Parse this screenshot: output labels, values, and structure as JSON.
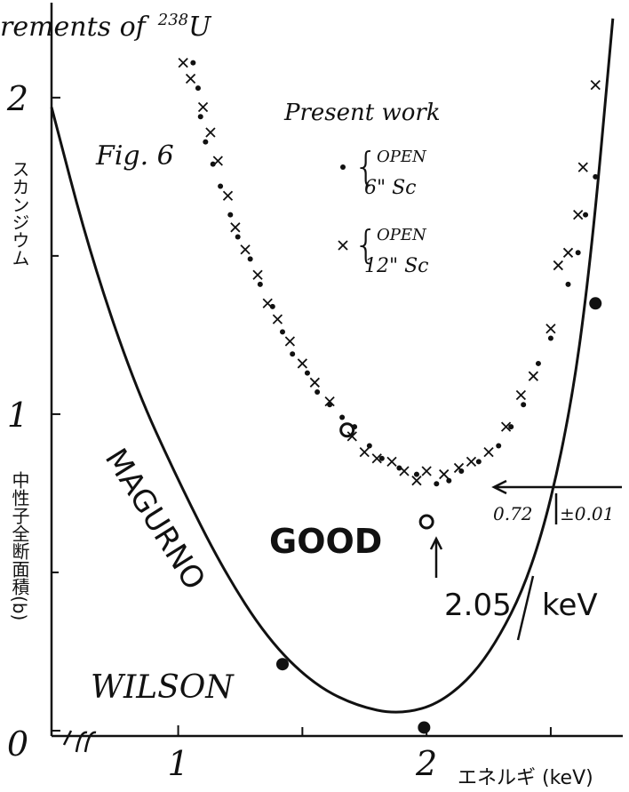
{
  "chart_data": {
    "type": "scatter",
    "title_parts": [
      "rements of",
      "238",
      "U"
    ],
    "y_label_top": "スカンジウム",
    "y_label_bottom": "中性子全断面積(b)",
    "x_label": "エネルギ (keV)",
    "figure_label": "Fig. 6",
    "legend_title": "Present work",
    "annotations": {
      "magurno": "MAGURNO",
      "wilson": "WILSON",
      "good": "GOOD",
      "minimum": "0.72",
      "minimum_error": "±0.01",
      "energy": "2.05",
      "energy_unit": "keV"
    },
    "xlim": [
      0.49,
      2.79
    ],
    "ylim": [
      0,
      2.3
    ],
    "xticks": [
      1,
      2
    ],
    "yticks": [
      0,
      1,
      2
    ],
    "xminorticks": [
      1.5,
      2.5
    ],
    "yminorticks": [
      0.5,
      1.5
    ],
    "series": [
      {
        "name_lines": [
          "OPEN",
          "6\" Sc"
        ],
        "marker": "dot",
        "color": "#111111",
        "x": [
          1.06,
          1.08,
          1.09,
          1.11,
          1.14,
          1.17,
          1.21,
          1.24,
          1.29,
          1.33,
          1.38,
          1.42,
          1.46,
          1.52,
          1.56,
          1.61,
          1.66,
          1.71,
          1.77,
          1.82,
          1.89,
          1.96,
          2.04,
          2.09,
          2.14,
          2.21,
          2.29,
          2.34,
          2.39,
          2.45,
          2.5,
          2.57,
          2.61,
          2.64,
          2.68
        ],
        "values": [
          2.11,
          2.03,
          1.94,
          1.86,
          1.79,
          1.72,
          1.63,
          1.56,
          1.49,
          1.41,
          1.34,
          1.26,
          1.19,
          1.13,
          1.07,
          1.03,
          0.99,
          0.96,
          0.9,
          0.86,
          0.83,
          0.81,
          0.78,
          0.79,
          0.82,
          0.85,
          0.9,
          0.96,
          1.03,
          1.16,
          1.24,
          1.41,
          1.51,
          1.63,
          1.75
        ]
      },
      {
        "name_lines": [
          "OPEN",
          "12\" Sc"
        ],
        "marker": "cross",
        "color": "#111111",
        "x": [
          1.02,
          1.05,
          1.1,
          1.13,
          1.16,
          1.2,
          1.23,
          1.27,
          1.32,
          1.36,
          1.4,
          1.45,
          1.5,
          1.55,
          1.61,
          1.7,
          1.75,
          1.8,
          1.86,
          1.91,
          1.96,
          2.0,
          2.07,
          2.13,
          2.18,
          2.25,
          2.32,
          2.38,
          2.43,
          2.5,
          2.53,
          2.57,
          2.61,
          2.63,
          2.68
        ],
        "values": [
          2.11,
          2.06,
          1.97,
          1.89,
          1.8,
          1.69,
          1.59,
          1.52,
          1.44,
          1.35,
          1.3,
          1.23,
          1.16,
          1.1,
          1.04,
          0.93,
          0.88,
          0.86,
          0.85,
          0.82,
          0.79,
          0.82,
          0.81,
          0.83,
          0.85,
          0.88,
          0.96,
          1.06,
          1.12,
          1.27,
          1.47,
          1.51,
          1.63,
          1.78,
          2.04
        ]
      },
      {
        "marker": "open-circle",
        "color": "#111111",
        "x": [
          1.68,
          2.0
        ],
        "values": [
          0.95,
          0.66
        ]
      },
      {
        "marker": "big-dot",
        "color": "#111111",
        "x": [
          1.42,
          1.99,
          2.68
        ],
        "values": [
          0.21,
          0.01,
          1.35
        ]
      },
      {
        "marker": "line",
        "color": "#111111",
        "x": [
          0.49,
          0.64,
          0.82,
          1.0,
          1.18,
          1.36,
          1.54,
          1.71,
          1.89,
          2.07,
          2.25,
          2.43,
          2.57,
          2.66,
          2.75
        ],
        "values": [
          1.97,
          1.52,
          1.1,
          0.79,
          0.51,
          0.29,
          0.15,
          0.08,
          0.05,
          0.09,
          0.23,
          0.51,
          0.96,
          1.47,
          2.25
        ]
      }
    ]
  }
}
